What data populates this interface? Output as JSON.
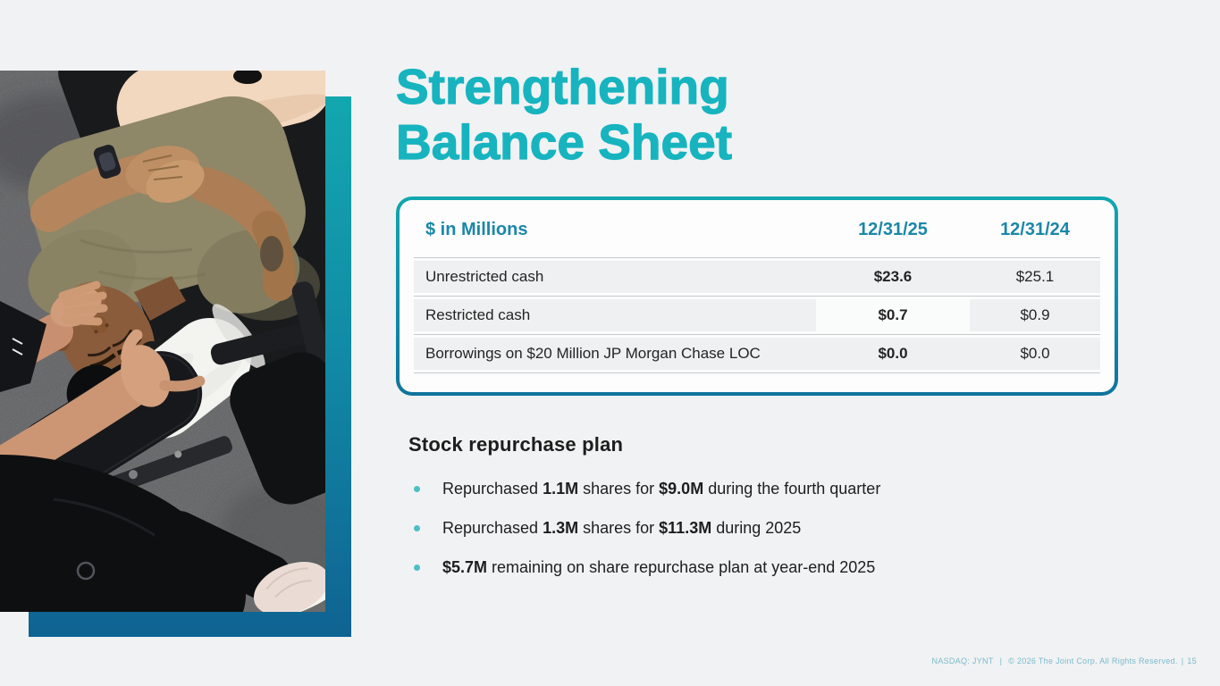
{
  "title": {
    "line1": "Strengthening",
    "line2": "Balance Sheet"
  },
  "table": {
    "header": {
      "label": "$ in Millions",
      "col1": "12/31/25",
      "col2": "12/31/24"
    },
    "rows": [
      {
        "label": "Unrestricted cash",
        "col1": "$23.6",
        "col2": "$25.1"
      },
      {
        "label": "Restricted cash",
        "col1": "$0.7",
        "col2": "$0.9"
      },
      {
        "label": "Borrowings on $20 Million JP Morgan Chase LOC",
        "col1": "$0.0",
        "col2": "$0.0"
      }
    ]
  },
  "repurchase": {
    "heading": "Stock repurchase plan",
    "bullets": [
      {
        "segments": [
          {
            "t": "Repurchased ",
            "b": false
          },
          {
            "t": "1.1M",
            "b": true
          },
          {
            "t": " shares for ",
            "b": false
          },
          {
            "t": "$9.0M",
            "b": true
          },
          {
            "t": " during the fourth quarter",
            "b": false
          }
        ]
      },
      {
        "segments": [
          {
            "t": "Repurchased ",
            "b": false
          },
          {
            "t": "1.3M",
            "b": true
          },
          {
            "t": " shares for ",
            "b": false
          },
          {
            "t": "$11.3M",
            "b": true
          },
          {
            "t": " during 2025",
            "b": false
          }
        ]
      },
      {
        "segments": [
          {
            "t": "$5.7M",
            "b": true
          },
          {
            "t": " remaining on share repurchase plan at year-end 2025",
            "b": false
          }
        ]
      }
    ]
  },
  "footer": {
    "ticker": "NASDAQ: JYNT",
    "separator": "|",
    "copyright": "© 2026 The Joint Corp. All Rights Reserved.",
    "page": "15"
  },
  "photo": {
    "alt": "Chiropractor cradling the head of a man lying face-up on a treatment table"
  },
  "colors": {
    "accent_teal": "#17B4BF",
    "table_header_blue": "#1B87A8",
    "gradient_top": "#12A7AF",
    "gradient_bottom": "#0F6392",
    "bullet_dot": "#4CBFC6",
    "footer_text": "#7ABACD"
  }
}
